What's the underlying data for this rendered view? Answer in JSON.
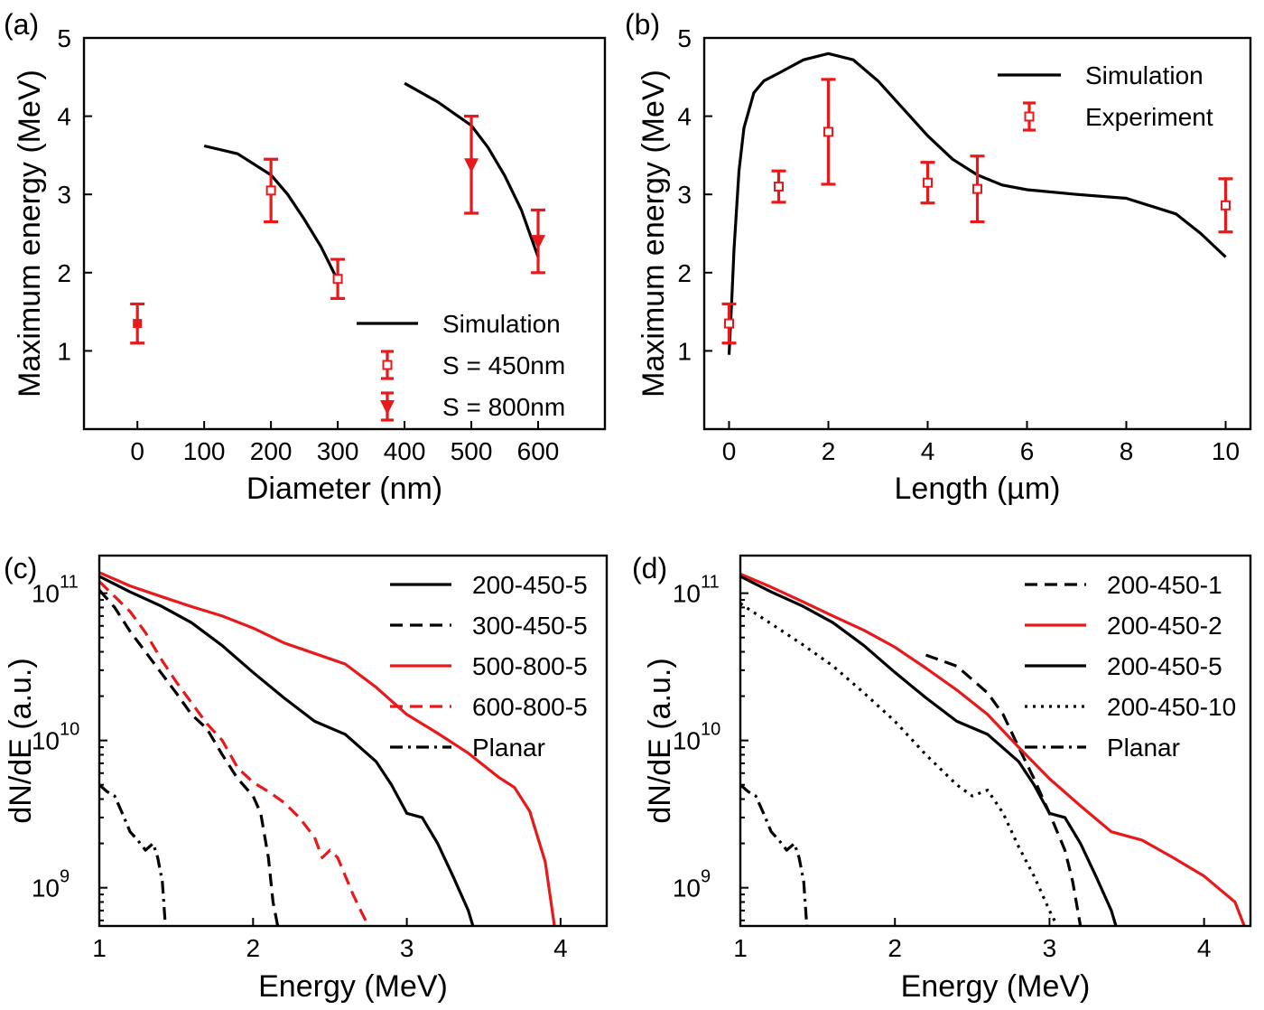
{
  "colors": {
    "black": "#000000",
    "red": "#e8191b"
  },
  "chart_data": [
    {
      "type": "line",
      "panel": "(a)",
      "xlabel": "Diameter (nm)",
      "ylabel": "Maximum energy (MeV)",
      "xlim": [
        -80,
        700
      ],
      "ylim": [
        0,
        5
      ],
      "xticks": [
        0,
        100,
        200,
        300,
        400,
        500,
        600
      ],
      "yticks": [
        1,
        2,
        3,
        4,
        5
      ],
      "series": [
        {
          "name": "Simulation",
          "style": "solid",
          "color": "#000000",
          "x": [
            100,
            150,
            200,
            225,
            250,
            275,
            300
          ],
          "y": [
            3.62,
            3.52,
            3.25,
            3.0,
            2.68,
            2.33,
            1.9
          ]
        },
        {
          "name": "Simulation",
          "style": "solid",
          "color": "#000000",
          "in_legend": false,
          "x": [
            400,
            450,
            500,
            525,
            550,
            575,
            600
          ],
          "y": [
            4.42,
            4.18,
            3.88,
            3.6,
            3.24,
            2.8,
            2.2
          ]
        },
        {
          "name": "S = 450nm",
          "style": "errorbar",
          "marker": "open-square",
          "color": "#e8191b",
          "x": [
            200,
            300
          ],
          "y": [
            3.05,
            1.92
          ],
          "err_low": [
            0.4,
            0.25
          ],
          "err_high": [
            0.4,
            0.25
          ]
        },
        {
          "name": "S = 800nm",
          "style": "errorbar",
          "marker": "down-triangle",
          "color": "#e8191b",
          "x": [
            500,
            600
          ],
          "y": [
            3.38,
            2.4
          ],
          "err_low": [
            0.62,
            0.4
          ],
          "err_high": [
            0.62,
            0.4
          ]
        },
        {
          "name": "",
          "style": "errorbar",
          "marker": "filled-square",
          "color": "#e8191b",
          "in_legend": false,
          "x": [
            0
          ],
          "y": [
            1.35
          ],
          "err_low": [
            0.25
          ],
          "err_high": [
            0.25
          ]
        }
      ],
      "legend": {
        "position": "bottom-right",
        "entries": [
          "Simulation",
          "S = 450nm",
          "S = 800nm"
        ]
      }
    },
    {
      "type": "line",
      "panel": "(b)",
      "xlabel": "Length (µm)",
      "ylabel": "Maximum energy (MeV)",
      "xlim": [
        -0.5,
        10.5
      ],
      "ylim": [
        0,
        5
      ],
      "xticks": [
        0,
        2,
        4,
        6,
        8,
        10
      ],
      "yticks": [
        1,
        2,
        3,
        4,
        5
      ],
      "series": [
        {
          "name": "Simulation",
          "style": "solid",
          "color": "#000000",
          "x": [
            0,
            0.05,
            0.1,
            0.2,
            0.3,
            0.5,
            0.7,
            1.0,
            1.5,
            2.0,
            2.5,
            3.0,
            3.5,
            4.0,
            4.5,
            5.0,
            5.5,
            6.0,
            7.0,
            8.0,
            9.0,
            9.5,
            10.0
          ],
          "y": [
            0.95,
            1.6,
            2.3,
            3.3,
            3.85,
            4.3,
            4.45,
            4.55,
            4.72,
            4.8,
            4.72,
            4.45,
            4.1,
            3.75,
            3.45,
            3.25,
            3.12,
            3.06,
            3.0,
            2.95,
            2.75,
            2.5,
            2.2
          ]
        },
        {
          "name": "Experiment",
          "style": "errorbar",
          "marker": "open-square",
          "color": "#e8191b",
          "x": [
            0,
            1,
            2,
            4,
            5,
            10
          ],
          "y": [
            1.35,
            3.1,
            3.8,
            3.15,
            3.07,
            2.86
          ],
          "err_low": [
            0.25,
            0.2,
            0.67,
            0.26,
            0.42,
            0.34
          ],
          "err_high": [
            0.25,
            0.2,
            0.67,
            0.26,
            0.42,
            0.34
          ]
        }
      ],
      "legend": {
        "position": "top-right",
        "entries": [
          "Simulation",
          "Experiment"
        ]
      }
    },
    {
      "type": "line",
      "panel": "(c)",
      "xlabel": "Energy (MeV)",
      "ylabel": "dN/dE (a.u.)",
      "yscale": "log",
      "xlim": [
        1,
        4.3
      ],
      "ylim": [
        550000000.0,
        180000000000.0
      ],
      "xticks": [
        1,
        2,
        3,
        4
      ],
      "yticks": [
        1000000000.0,
        10000000000.0,
        100000000000.0
      ],
      "ytick_labels": {
        "base": "10",
        "exponents": [
          "9",
          "10",
          "11"
        ]
      },
      "series": [
        {
          "name": "200-450-5",
          "style": "solid",
          "color": "#000000",
          "x": [
            1.0,
            1.2,
            1.4,
            1.6,
            1.8,
            2.0,
            2.2,
            2.4,
            2.6,
            2.8,
            2.9,
            3.0,
            3.1,
            3.2,
            3.3,
            3.4,
            3.43
          ],
          "y": [
            130000000000.0,
            102000000000.0,
            82000000000.0,
            63000000000.0,
            44000000000.0,
            29000000000.0,
            19500000000.0,
            13500000000.0,
            11000000000.0,
            7200000000.0,
            5000000000.0,
            3200000000.0,
            3000000000.0,
            2000000000.0,
            1200000000.0,
            700000000.0,
            550000000.0
          ]
        },
        {
          "name": "300-450-5",
          "style": "dashed",
          "color": "#000000",
          "x": [
            1.0,
            1.1,
            1.2,
            1.3,
            1.4,
            1.5,
            1.6,
            1.7,
            1.8,
            1.9,
            2.0,
            2.05,
            2.1,
            2.13,
            2.16
          ],
          "y": [
            105000000000.0,
            80000000000.0,
            55000000000.0,
            40000000000.0,
            29000000000.0,
            21000000000.0,
            15000000000.0,
            12000000000.0,
            8000000000.0,
            5500000000.0,
            4200000000.0,
            3200000000.0,
            1600000000.0,
            800000000.0,
            550000000.0
          ]
        },
        {
          "name": "500-800-5",
          "style": "solid",
          "color": "#e8191b",
          "x": [
            1.0,
            1.2,
            1.4,
            1.6,
            1.8,
            2.0,
            2.2,
            2.4,
            2.6,
            2.8,
            3.0,
            3.2,
            3.4,
            3.6,
            3.7,
            3.8,
            3.9,
            3.96
          ],
          "y": [
            138000000000.0,
            112000000000.0,
            95000000000.0,
            81000000000.0,
            70000000000.0,
            58000000000.0,
            46000000000.0,
            39000000000.0,
            33000000000.0,
            23000000000.0,
            15000000000.0,
            11200000000.0,
            8200000000.0,
            5600000000.0,
            4800000000.0,
            3300000000.0,
            1500000000.0,
            550000000.0
          ]
        },
        {
          "name": "600-800-5",
          "style": "dashed",
          "color": "#e8191b",
          "x": [
            1.0,
            1.1,
            1.2,
            1.3,
            1.4,
            1.5,
            1.6,
            1.7,
            1.8,
            1.9,
            2.0,
            2.1,
            2.2,
            2.3,
            2.4,
            2.45,
            2.5,
            2.55,
            2.6,
            2.65,
            2.7,
            2.75
          ],
          "y": [
            120000000000.0,
            95000000000.0,
            75000000000.0,
            54000000000.0,
            36000000000.0,
            25000000000.0,
            18000000000.0,
            13000000000.0,
            10000000000.0,
            6500000000.0,
            5200000000.0,
            4500000000.0,
            3800000000.0,
            3000000000.0,
            2200000000.0,
            1600000000.0,
            1800000000.0,
            1600000000.0,
            1200000000.0,
            900000000.0,
            700000000.0,
            550000000.0
          ]
        },
        {
          "name": "Planar",
          "style": "dash-dot",
          "color": "#000000",
          "x": [
            1.0,
            1.05,
            1.1,
            1.15,
            1.2,
            1.25,
            1.3,
            1.35,
            1.38,
            1.41,
            1.43
          ],
          "y": [
            5000000000.0,
            4500000000.0,
            4200000000.0,
            3200000000.0,
            2400000000.0,
            2100000000.0,
            1800000000.0,
            2000000000.0,
            1600000000.0,
            1100000000.0,
            550000000.0
          ]
        }
      ],
      "legend": {
        "position": "top-right",
        "entries": [
          "200-450-5",
          "300-450-5",
          "500-800-5",
          "600-800-5",
          "Planar"
        ]
      }
    },
    {
      "type": "line",
      "panel": "(d)",
      "xlabel": "Energy (MeV)",
      "ylabel": "dN/dE (a.u.)",
      "yscale": "log",
      "xlim": [
        1,
        4.3
      ],
      "ylim": [
        550000000.0,
        180000000000.0
      ],
      "xticks": [
        1,
        2,
        3,
        4
      ],
      "yticks": [
        1000000000.0,
        10000000000.0,
        100000000000.0
      ],
      "ytick_labels": {
        "base": "10",
        "exponents": [
          "9",
          "10",
          "11"
        ]
      },
      "series": [
        {
          "name": "200-450-1",
          "style": "dashed",
          "color": "#000000",
          "x": [
            2.2,
            2.4,
            2.6,
            2.7,
            2.8,
            2.9,
            3.0,
            3.05,
            3.1,
            3.15,
            3.2
          ],
          "y": [
            38000000000.0,
            32000000000.0,
            21000000000.0,
            15000000000.0,
            9000000000.0,
            5500000000.0,
            3200000000.0,
            2400000000.0,
            1800000000.0,
            1100000000.0,
            550000000.0
          ]
        },
        {
          "name": "200-450-2",
          "style": "solid",
          "color": "#e8191b",
          "x": [
            1.0,
            1.2,
            1.4,
            1.6,
            1.8,
            2.0,
            2.2,
            2.4,
            2.6,
            2.8,
            3.0,
            3.2,
            3.4,
            3.6,
            3.8,
            4.0,
            4.2,
            4.26
          ],
          "y": [
            135000000000.0,
            110000000000.0,
            88000000000.0,
            70000000000.0,
            56000000000.0,
            43000000000.0,
            31000000000.0,
            22000000000.0,
            15000000000.0,
            9000000000.0,
            5500000000.0,
            3600000000.0,
            2400000000.0,
            2100000000.0,
            1600000000.0,
            1200000000.0,
            800000000.0,
            550000000.0
          ]
        },
        {
          "name": "200-450-5",
          "style": "solid",
          "color": "#000000",
          "x": [
            1.0,
            1.2,
            1.4,
            1.6,
            1.8,
            2.0,
            2.2,
            2.4,
            2.6,
            2.8,
            2.9,
            3.0,
            3.1,
            3.2,
            3.3,
            3.4,
            3.43
          ],
          "y": [
            130000000000.0,
            102000000000.0,
            82000000000.0,
            63000000000.0,
            44000000000.0,
            29000000000.0,
            19500000000.0,
            13500000000.0,
            11000000000.0,
            7200000000.0,
            5000000000.0,
            3200000000.0,
            3000000000.0,
            2000000000.0,
            1200000000.0,
            700000000.0,
            550000000.0
          ]
        },
        {
          "name": "200-450-10",
          "style": "dotted",
          "color": "#000000",
          "x": [
            1.0,
            1.2,
            1.4,
            1.6,
            1.8,
            2.0,
            2.2,
            2.4,
            2.5,
            2.6,
            2.7,
            2.8,
            2.9,
            3.0,
            3.05
          ],
          "y": [
            85000000000.0,
            62000000000.0,
            45000000000.0,
            32000000000.0,
            21000000000.0,
            13500000000.0,
            8000000000.0,
            5000000000.0,
            4200000000.0,
            4600000000.0,
            3200000000.0,
            1900000000.0,
            1200000000.0,
            700000000.0,
            550000000.0
          ]
        },
        {
          "name": "Planar",
          "style": "dash-dot",
          "color": "#000000",
          "x": [
            1.0,
            1.05,
            1.1,
            1.15,
            1.2,
            1.25,
            1.3,
            1.35,
            1.38,
            1.41,
            1.43
          ],
          "y": [
            5000000000.0,
            4500000000.0,
            4200000000.0,
            3200000000.0,
            2400000000.0,
            2100000000.0,
            1800000000.0,
            2000000000.0,
            1600000000.0,
            1100000000.0,
            550000000.0
          ]
        }
      ],
      "legend": {
        "position": "top-right",
        "entries": [
          "200-450-1",
          "200-450-2",
          "200-450-5",
          "200-450-10",
          "Planar"
        ]
      }
    }
  ]
}
